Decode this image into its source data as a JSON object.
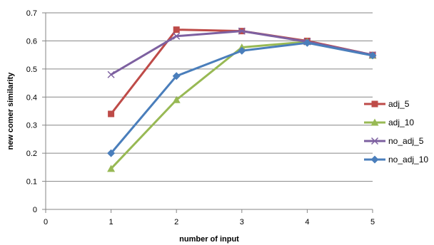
{
  "chart_data": {
    "type": "line",
    "title": "",
    "xlabel": "number of input",
    "ylabel": "new comer similarity",
    "xlim": [
      0,
      5
    ],
    "ylim": [
      0,
      0.7
    ],
    "xticks": [
      0,
      1,
      2,
      3,
      4,
      5
    ],
    "yticks": [
      0,
      0.1,
      0.2,
      0.3,
      0.4,
      0.5,
      0.6,
      0.7
    ],
    "ytick_labels": [
      "0",
      "0.1",
      "0.2",
      "0.3",
      "0.4",
      "0.5",
      "0.6",
      "0.7"
    ],
    "grid": "horizontal",
    "legend_position": "right",
    "x": [
      1,
      2,
      3,
      4,
      5
    ],
    "series": [
      {
        "name": "adj_5",
        "color": "#be4b48",
        "marker": "square",
        "values": [
          0.34,
          0.64,
          0.635,
          0.6,
          0.55
        ]
      },
      {
        "name": "adj_10",
        "color": "#98b954",
        "marker": "triangle",
        "values": [
          0.145,
          0.39,
          0.577,
          0.597,
          0.548
        ]
      },
      {
        "name": "no_adj_5",
        "color": "#7d60a0",
        "marker": "x",
        "values": [
          0.48,
          0.617,
          0.635,
          0.597,
          0.55
        ]
      },
      {
        "name": "no_adj_10",
        "color": "#4a7ebb",
        "marker": "diamond",
        "values": [
          0.2,
          0.475,
          0.565,
          0.593,
          0.548
        ]
      }
    ]
  }
}
